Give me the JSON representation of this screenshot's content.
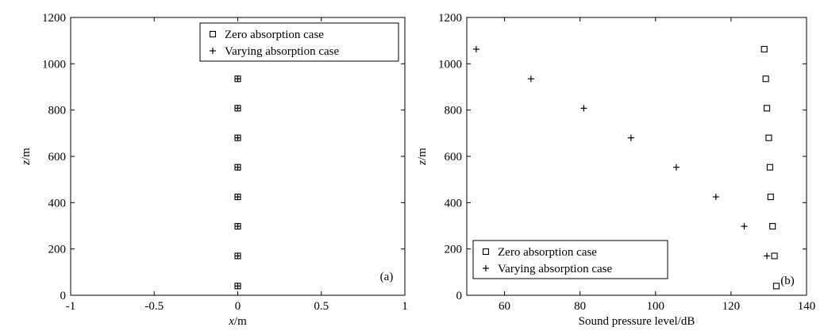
{
  "chart_data": [
    {
      "type": "scatter",
      "panel_label": "(a)",
      "xlabel_var": "x",
      "xlabel_unit": "/m",
      "ylabel_var": "z",
      "ylabel_unit": "/m",
      "xlim": [
        -1,
        1
      ],
      "ylim": [
        0,
        1200
      ],
      "xticks": [
        -1,
        -0.5,
        0,
        0.5,
        1
      ],
      "xtick_labels": [
        "-1",
        "-0.5",
        "0",
        "0.5",
        "1"
      ],
      "yticks": [
        0,
        200,
        400,
        600,
        800,
        1000,
        1200
      ],
      "ytick_labels": [
        "0",
        "200",
        "400",
        "600",
        "800",
        "1000",
        "1200"
      ],
      "legend_position": "top-right",
      "series": [
        {
          "name": "Zero absorption case",
          "marker": "square",
          "points": [
            [
              0,
              40
            ],
            [
              0,
              170
            ],
            [
              0,
              298
            ],
            [
              0,
              425
            ],
            [
              0,
              553
            ],
            [
              0,
              680
            ],
            [
              0,
              808
            ],
            [
              0,
              935
            ]
          ]
        },
        {
          "name": "Varying absorption case",
          "marker": "plus",
          "points": [
            [
              0,
              40
            ],
            [
              0,
              170
            ],
            [
              0,
              298
            ],
            [
              0,
              425
            ],
            [
              0,
              553
            ],
            [
              0,
              680
            ],
            [
              0,
              808
            ],
            [
              0,
              935
            ]
          ]
        }
      ]
    },
    {
      "type": "scatter",
      "panel_label": "(b)",
      "xlabel": "Sound pressure level/dB",
      "ylabel_var": "z",
      "ylabel_unit": "/m",
      "xlim": [
        50,
        140
      ],
      "ylim": [
        0,
        1200
      ],
      "xticks": [
        60,
        80,
        100,
        120,
        140
      ],
      "xtick_labels": [
        "60",
        "80",
        "100",
        "120",
        "140"
      ],
      "yticks": [
        0,
        200,
        400,
        600,
        800,
        1000,
        1200
      ],
      "ytick_labels": [
        "0",
        "200",
        "400",
        "600",
        "800",
        "1000",
        "1200"
      ],
      "legend_position": "bottom-left",
      "series": [
        {
          "name": "Zero absorption case",
          "marker": "square",
          "points": [
            [
              132,
              40
            ],
            [
              131.5,
              170
            ],
            [
              131,
              298
            ],
            [
              130.5,
              425
            ],
            [
              130.3,
              553
            ],
            [
              130,
              680
            ],
            [
              129.5,
              808
            ],
            [
              129.2,
              935
            ],
            [
              128.8,
              1063
            ]
          ]
        },
        {
          "name": "Varying absorption case",
          "marker": "plus",
          "points": [
            [
              129.5,
              170
            ],
            [
              123.5,
              298
            ],
            [
              116,
              425
            ],
            [
              105.5,
              553
            ],
            [
              93.5,
              680
            ],
            [
              81,
              808
            ],
            [
              67,
              935
            ],
            [
              52.5,
              1063
            ]
          ]
        }
      ]
    }
  ]
}
